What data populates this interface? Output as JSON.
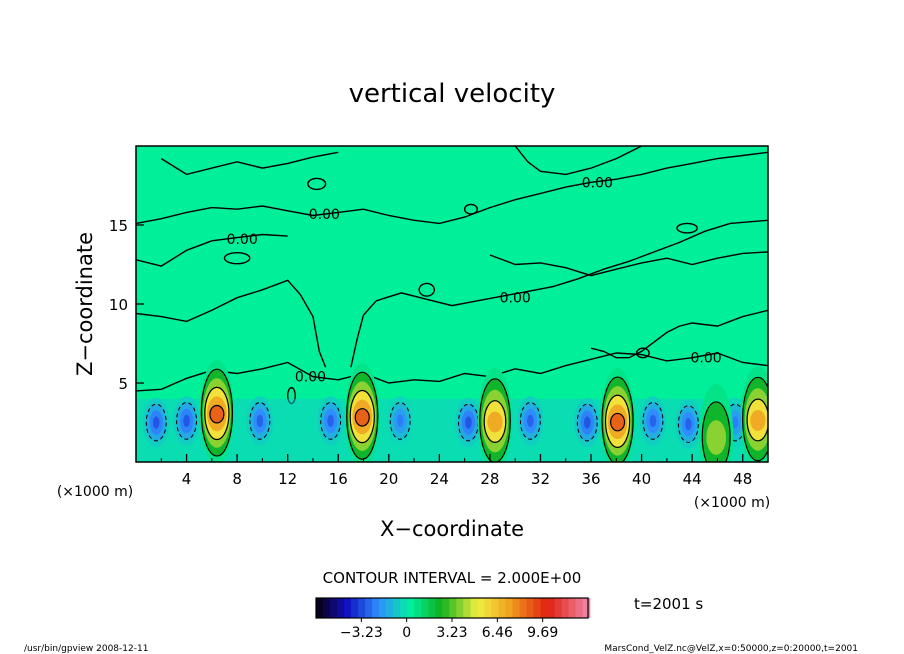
{
  "chart_data": {
    "type": "heatmap",
    "title": "vertical velocity",
    "xlabel": "X−coordinate",
    "ylabel": "Z−coordinate",
    "x_unit": "(×1000 m)",
    "y_unit": "(×1000 m)",
    "xlim": [
      0,
      50
    ],
    "ylim": [
      0,
      20
    ],
    "x_ticks": [
      4,
      8,
      12,
      16,
      20,
      24,
      28,
      32,
      36,
      40,
      44,
      48
    ],
    "y_ticks": [
      5,
      10,
      15
    ],
    "grid": false,
    "contour_interval_label": "CONTOUR INTERVAL = 2.000E+00",
    "contour_labels": [
      {
        "text": "0.00",
        "x": 14.9,
        "y": 15.7
      },
      {
        "text": "0.00",
        "x": 8.4,
        "y": 14.1
      },
      {
        "text": "0.00",
        "x": 30.0,
        "y": 10.4
      },
      {
        "text": "0.00",
        "x": 36.5,
        "y": 17.7
      },
      {
        "text": "0.00",
        "x": 13.8,
        "y": 5.4
      },
      {
        "text": "0.00",
        "x": 45.1,
        "y": 6.6
      }
    ],
    "updraft_cores": [
      {
        "x": 6.4,
        "z": 3.0,
        "peak": 9.69
      },
      {
        "x": 17.9,
        "z": 2.8,
        "peak": 9.69
      },
      {
        "x": 28.4,
        "z": 2.5,
        "peak": 8.0
      },
      {
        "x": 38.1,
        "z": 2.5,
        "peak": 9.69
      },
      {
        "x": 45.9,
        "z": 1.5,
        "peak": 5.0
      },
      {
        "x": 49.2,
        "z": 2.6,
        "peak": 7.0
      }
    ],
    "downdraft_cores": [
      {
        "x": 1.6,
        "z": 2.5,
        "min": -3.23
      },
      {
        "x": 4.0,
        "z": 2.6,
        "min": -3.23
      },
      {
        "x": 9.8,
        "z": 2.6,
        "min": -3.0
      },
      {
        "x": 15.4,
        "z": 2.6,
        "min": -3.0
      },
      {
        "x": 20.9,
        "z": 2.6,
        "min": -2.5
      },
      {
        "x": 26.3,
        "z": 2.5,
        "min": -3.23
      },
      {
        "x": 31.2,
        "z": 2.6,
        "min": -3.0
      },
      {
        "x": 35.7,
        "z": 2.5,
        "min": -3.23
      },
      {
        "x": 40.9,
        "z": 2.6,
        "min": -3.0
      },
      {
        "x": 43.7,
        "z": 2.4,
        "min": -3.0
      },
      {
        "x": 47.4,
        "z": 2.5,
        "min": -2.5
      }
    ],
    "colorbar": {
      "ticks": [
        -3.23,
        0,
        3.23,
        6.46,
        9.69
      ],
      "tick_labels": [
        "−3.23",
        "0",
        "3.23",
        "6.46",
        "9.69"
      ],
      "range": [
        -6.46,
        12.92
      ]
    }
  },
  "time_label": "t=2001 s",
  "footer_left": "/usr/bin/gpview   2008-12-11",
  "footer_right": "MarsCond_VelZ.nc@VelZ,x=0:50000,z=0:20000,t=2001",
  "colors": {
    "background_field": "#00f09a",
    "cold": "#0018e0",
    "warm": "#e01010"
  }
}
